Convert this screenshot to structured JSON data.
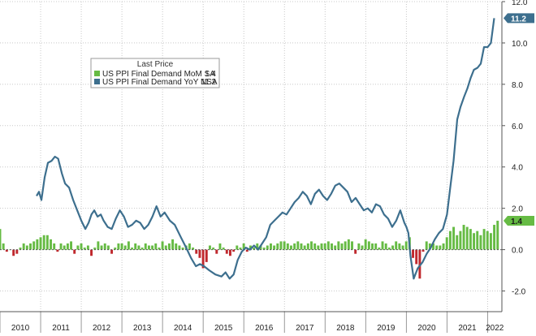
{
  "chart_data": {
    "type": "bar+line",
    "title": "",
    "legend": {
      "title": "Last Price",
      "placement": "top-left",
      "entries": [
        {
          "label": "US PPI Final Demand MoM SA",
          "value": "1.4",
          "color": "#66bb44"
        },
        {
          "label": "US PPI Final Demand YoY NSA",
          "value": "11.2",
          "color": "#3d6f8e"
        }
      ]
    },
    "y_axis": {
      "position": "right",
      "range": [
        -3.0,
        12.0
      ],
      "ticks": [
        "12.0",
        "10.0",
        "8.0",
        "6.0",
        "4.0",
        "2.0",
        "0.0",
        "-2.0"
      ]
    },
    "x_axis": {
      "range": [
        2010.0,
        2022.35
      ],
      "labels": [
        "2010",
        "2011",
        "2012",
        "2013",
        "2014",
        "2015",
        "2016",
        "2017",
        "2018",
        "2019",
        "2020",
        "2021",
        "2022"
      ]
    },
    "grid": true,
    "series": [
      {
        "name": "US PPI Final Demand MoM SA",
        "kind": "bar",
        "positive_color": "#66bb44",
        "negative_color": "#c0282d",
        "start_year": 2010.0,
        "step": 0.0833,
        "values": [
          1.0,
          0.3,
          -0.1,
          0.0,
          -0.3,
          -0.2,
          0.1,
          0.3,
          0.2,
          0.3,
          0.4,
          0.5,
          0.6,
          0.7,
          0.7,
          0.5,
          0.3,
          -0.1,
          0.3,
          0.2,
          0.3,
          0.4,
          -0.2,
          0.2,
          0.3,
          0.1,
          0.2,
          -0.3,
          0.1,
          0.4,
          0.2,
          0.3,
          0.2,
          -0.2,
          0.1,
          0.3,
          0.3,
          0.2,
          0.4,
          0.1,
          0.3,
          0.2,
          0.1,
          0.3,
          0.2,
          0.2,
          0.3,
          0.1,
          0.4,
          0.2,
          0.3,
          0.5,
          0.3,
          0.2,
          0.1,
          0.2,
          0.3,
          0.1,
          -0.2,
          -0.4,
          -0.9,
          -0.6,
          0.2,
          0.1,
          -0.2,
          0.3,
          0.1,
          -0.2,
          -0.3,
          -0.1,
          0.2,
          0.1,
          0.3,
          -0.1,
          0.2,
          0.1,
          0.3,
          0.2,
          0.1,
          0.2,
          0.3,
          0.2,
          0.3,
          0.4,
          0.4,
          0.3,
          0.2,
          0.3,
          0.4,
          0.3,
          0.2,
          0.3,
          0.4,
          0.3,
          0.2,
          0.3,
          0.3,
          0.4,
          0.3,
          0.2,
          0.4,
          0.3,
          0.4,
          0.5,
          0.4,
          -0.2,
          0.3,
          0.2,
          0.5,
          0.4,
          0.3,
          0.3,
          0.1,
          0.4,
          0.3,
          0.1,
          0.2,
          0.4,
          0.3,
          0.2,
          0.4,
          0.6,
          -0.4,
          -0.7,
          -1.4,
          -0.1,
          0.4,
          0.3,
          0.3,
          0.2,
          0.2,
          0.3,
          0.6,
          0.9,
          1.1,
          0.7,
          0.9,
          1.2,
          1.1,
          1.0,
          0.8,
          0.9,
          0.7,
          1.0,
          0.9,
          0.8,
          1.2,
          1.4
        ]
      },
      {
        "name": "US PPI Final Demand YoY NSA",
        "kind": "line",
        "color": "#3d6f8e",
        "points": [
          [
            2010.9,
            2.6
          ],
          [
            2010.96,
            2.8
          ],
          [
            2011.02,
            2.4
          ],
          [
            2011.1,
            3.5
          ],
          [
            2011.18,
            4.2
          ],
          [
            2011.27,
            4.3
          ],
          [
            2011.35,
            4.5
          ],
          [
            2011.43,
            4.4
          ],
          [
            2011.52,
            3.7
          ],
          [
            2011.6,
            3.2
          ],
          [
            2011.7,
            3.0
          ],
          [
            2011.8,
            2.4
          ],
          [
            2011.9,
            1.9
          ],
          [
            2012.0,
            1.4
          ],
          [
            2012.1,
            1.0
          ],
          [
            2012.18,
            1.3
          ],
          [
            2012.25,
            1.7
          ],
          [
            2012.32,
            1.9
          ],
          [
            2012.4,
            1.6
          ],
          [
            2012.48,
            1.7
          ],
          [
            2012.55,
            1.4
          ],
          [
            2012.65,
            1.1
          ],
          [
            2012.75,
            1.0
          ],
          [
            2012.85,
            1.5
          ],
          [
            2012.95,
            1.9
          ],
          [
            2013.05,
            1.6
          ],
          [
            2013.15,
            1.1
          ],
          [
            2013.25,
            1.2
          ],
          [
            2013.35,
            1.4
          ],
          [
            2013.45,
            1.3
          ],
          [
            2013.55,
            1.0
          ],
          [
            2013.65,
            1.2
          ],
          [
            2013.75,
            1.6
          ],
          [
            2013.85,
            2.1
          ],
          [
            2013.95,
            1.6
          ],
          [
            2014.05,
            1.8
          ],
          [
            2014.18,
            1.4
          ],
          [
            2014.3,
            1.2
          ],
          [
            2014.45,
            0.6
          ],
          [
            2014.58,
            0.1
          ],
          [
            2014.7,
            -0.4
          ],
          [
            2014.82,
            -0.8
          ],
          [
            2014.92,
            -0.7
          ],
          [
            2015.02,
            -0.8
          ],
          [
            2015.15,
            -1.0
          ],
          [
            2015.3,
            -1.2
          ],
          [
            2015.45,
            -1.3
          ],
          [
            2015.55,
            -1.1
          ],
          [
            2015.65,
            -1.4
          ],
          [
            2015.75,
            -1.2
          ],
          [
            2015.85,
            -0.5
          ],
          [
            2015.95,
            -0.1
          ],
          [
            2016.05,
            0.1
          ],
          [
            2016.15,
            0.0
          ],
          [
            2016.25,
            0.2
          ],
          [
            2016.35,
            0.0
          ],
          [
            2016.45,
            0.3
          ],
          [
            2016.55,
            0.6
          ],
          [
            2016.65,
            1.2
          ],
          [
            2016.75,
            1.4
          ],
          [
            2016.85,
            1.6
          ],
          [
            2016.95,
            1.8
          ],
          [
            2017.05,
            1.7
          ],
          [
            2017.15,
            2.0
          ],
          [
            2017.25,
            2.3
          ],
          [
            2017.35,
            2.5
          ],
          [
            2017.45,
            2.8
          ],
          [
            2017.55,
            2.6
          ],
          [
            2017.65,
            2.2
          ],
          [
            2017.75,
            2.7
          ],
          [
            2017.85,
            2.9
          ],
          [
            2017.95,
            2.6
          ],
          [
            2018.05,
            2.4
          ],
          [
            2018.15,
            2.7
          ],
          [
            2018.25,
            3.1
          ],
          [
            2018.35,
            3.2
          ],
          [
            2018.45,
            3.0
          ],
          [
            2018.55,
            2.8
          ],
          [
            2018.65,
            2.3
          ],
          [
            2018.75,
            2.5
          ],
          [
            2018.85,
            2.2
          ],
          [
            2018.95,
            1.9
          ],
          [
            2019.05,
            2.0
          ],
          [
            2019.15,
            1.8
          ],
          [
            2019.25,
            2.2
          ],
          [
            2019.35,
            2.1
          ],
          [
            2019.45,
            1.7
          ],
          [
            2019.55,
            1.5
          ],
          [
            2019.65,
            1.1
          ],
          [
            2019.75,
            1.4
          ],
          [
            2019.85,
            1.9
          ],
          [
            2019.95,
            1.3
          ],
          [
            2020.0,
            1.1
          ],
          [
            2020.05,
            0.8
          ],
          [
            2020.1,
            -0.3
          ],
          [
            2020.18,
            -1.4
          ],
          [
            2020.28,
            -0.9
          ],
          [
            2020.4,
            -0.6
          ],
          [
            2020.5,
            -0.2
          ],
          [
            2020.6,
            0.1
          ],
          [
            2020.7,
            0.5
          ],
          [
            2020.8,
            0.8
          ],
          [
            2020.9,
            1.0
          ],
          [
            2021.0,
            1.7
          ],
          [
            2021.08,
            3.0
          ],
          [
            2021.16,
            4.3
          ],
          [
            2021.25,
            6.3
          ],
          [
            2021.33,
            6.9
          ],
          [
            2021.42,
            7.4
          ],
          [
            2021.5,
            7.8
          ],
          [
            2021.58,
            8.3
          ],
          [
            2021.66,
            8.7
          ],
          [
            2021.75,
            8.8
          ],
          [
            2021.83,
            9.0
          ],
          [
            2021.91,
            9.8
          ],
          [
            2022.0,
            9.8
          ],
          [
            2022.08,
            10.0
          ],
          [
            2022.16,
            11.2
          ]
        ]
      }
    ]
  }
}
